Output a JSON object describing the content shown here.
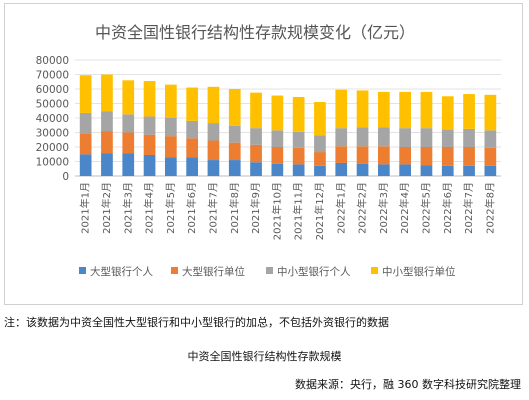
{
  "chart_data": {
    "type": "bar",
    "stacked": true,
    "title": "中资全国性银行结构性存款规模变化（亿元）",
    "xlabel": "",
    "ylabel": "",
    "ylim": [
      0,
      80000
    ],
    "yticks": [
      "0",
      "10000",
      "20000",
      "30000",
      "40000",
      "50000",
      "60000",
      "70000",
      "80000"
    ],
    "grid": true,
    "legend": "bottom",
    "categories": [
      "2021年1月",
      "2021年2月",
      "2021年3月",
      "2021年4月",
      "2021年5月",
      "2021年6月",
      "2021年7月",
      "2021年8月",
      "2021年9月",
      "2021年10月",
      "2021年11月",
      "2021年12月",
      "2022年1月",
      "2022年2月",
      "2022年3月",
      "2022年4月",
      "2022年5月",
      "2022年6月",
      "2022年7月",
      "2022年8月"
    ],
    "series": [
      {
        "name": "大型银行个人",
        "color": "#4a86c8",
        "values": [
          15000,
          15500,
          15500,
          14500,
          13000,
          13000,
          11000,
          11000,
          9500,
          8500,
          8000,
          7000,
          9000,
          8500,
          8000,
          8000,
          7500,
          7000,
          7000,
          7000
        ]
      },
      {
        "name": "大型银行单位",
        "color": "#ed7d31",
        "values": [
          14500,
          15500,
          14500,
          14000,
          14500,
          13000,
          13500,
          12000,
          12000,
          11500,
          11500,
          9500,
          11500,
          12000,
          12500,
          12000,
          12500,
          13000,
          13000,
          12500
        ]
      },
      {
        "name": "中小型银行个人",
        "color": "#a5a5a5",
        "values": [
          14000,
          13500,
          12500,
          12500,
          12500,
          12000,
          12000,
          11500,
          11500,
          11500,
          11000,
          11500,
          12500,
          13000,
          13000,
          13000,
          13000,
          12000,
          12500,
          12000
        ]
      },
      {
        "name": "中小型银行单位",
        "color": "#ffc000",
        "values": [
          26000,
          25500,
          23500,
          24500,
          23000,
          23000,
          25000,
          25500,
          24500,
          24000,
          24000,
          23000,
          26500,
          25500,
          24500,
          25000,
          25000,
          23000,
          24000,
          24500
        ]
      }
    ]
  },
  "captions": {
    "note": "注：该数据为中资全国性大型银行和中小型银行的加总，不包括外资银行的数据",
    "subtitle": "中资全国性银行结构性存款规模",
    "source": "数据来源：央行，融 360 数字科技研究院整理"
  }
}
